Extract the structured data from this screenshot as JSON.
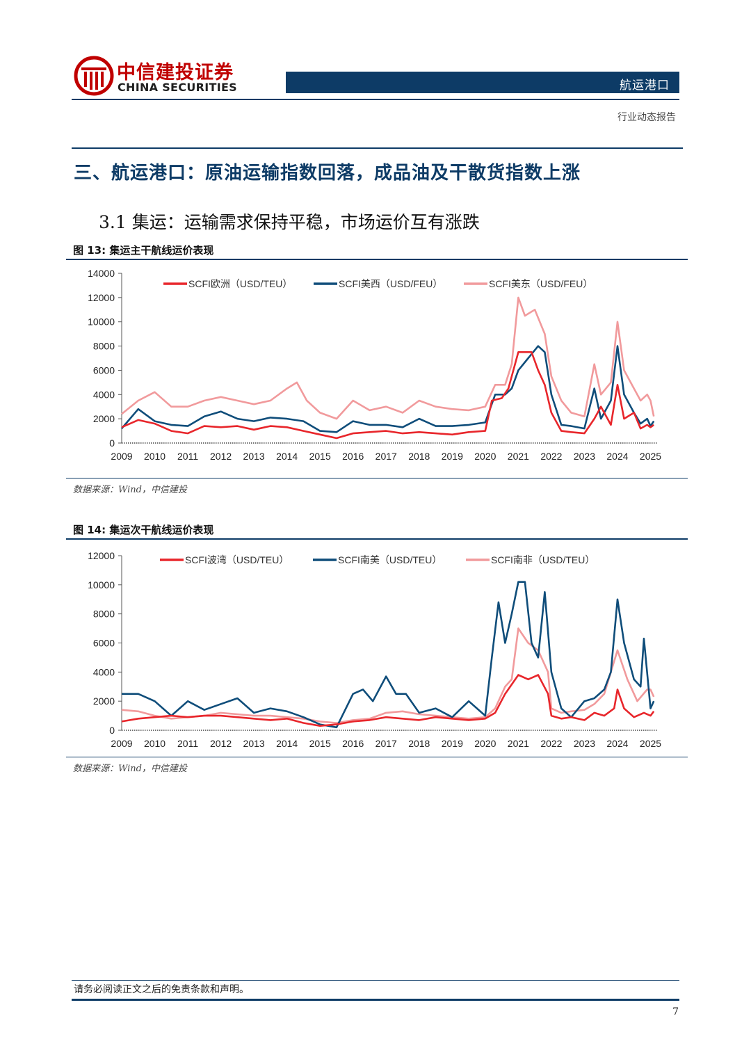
{
  "header": {
    "brand_cn": "中信建投证券",
    "brand_en": "CHINA SECURITIES",
    "section_tab": "航运港口",
    "report_type": "行业动态报告"
  },
  "section": {
    "heading": "三、航运港口：原油运输指数回落，成品油及干散货指数上涨",
    "subheading": "3.1 集运：运输需求保持平稳，市场运价互有涨跌"
  },
  "colors": {
    "brand_red": "#c00000",
    "navy": "#0d3b66",
    "series_red": "#e8262b",
    "series_navy": "#0f4d7a",
    "series_pink": "#f19a9c"
  },
  "figures": [
    {
      "caption": "图 13: 集运主干航线运价表现",
      "source": "数据来源：Wind，中信建投"
    },
    {
      "caption": "图 14: 集运次干航线运价表现",
      "source": "数据来源：Wind，中信建投"
    }
  ],
  "chart_data": [
    {
      "type": "line",
      "title": "图 13: 集运主干航线运价表现",
      "xlim": [
        2009,
        2025.2
      ],
      "ylim": [
        0,
        14000
      ],
      "x_ticks": [
        "2009",
        "2010",
        "2011",
        "2012",
        "2013",
        "2014",
        "2015",
        "2016",
        "2017",
        "2018",
        "2019",
        "2020",
        "2021",
        "2022",
        "2023",
        "2024",
        "2025"
      ],
      "y_ticks": [
        "0",
        "2000",
        "4000",
        "6000",
        "8000",
        "10000",
        "12000",
        "14000"
      ],
      "legend": "top",
      "series": [
        {
          "name": "SCFI欧洲（USD/TEU）",
          "color": "#e8262b",
          "x": [
            2009,
            2009.5,
            2010,
            2010.5,
            2011,
            2011.5,
            2012,
            2012.5,
            2013,
            2013.5,
            2014,
            2014.5,
            2015,
            2015.5,
            2016,
            2016.5,
            2017,
            2017.5,
            2018,
            2018.5,
            2019,
            2019.5,
            2020,
            2020.2,
            2020.5,
            2020.7,
            2021,
            2021.2,
            2021.4,
            2021.6,
            2021.8,
            2022,
            2022.3,
            2022.6,
            2023,
            2023.3,
            2023.5,
            2023.8,
            2024,
            2024.2,
            2024.5,
            2024.7,
            2024.9,
            2025,
            2025.1
          ],
          "y": [
            1300,
            1900,
            1600,
            1000,
            800,
            1400,
            1300,
            1400,
            1100,
            1400,
            1300,
            1000,
            700,
            400,
            800,
            900,
            1000,
            800,
            900,
            800,
            700,
            900,
            1000,
            3500,
            3700,
            4500,
            7500,
            7500,
            7500,
            6000,
            4800,
            2500,
            1000,
            900,
            800,
            2000,
            3000,
            1500,
            4800,
            2000,
            2500,
            1200,
            1500,
            1300,
            1500
          ]
        },
        {
          "name": "SCFI美西（USD/FEU）",
          "color": "#0f4d7a",
          "x": [
            2009,
            2009.5,
            2010,
            2010.5,
            2011,
            2011.5,
            2012,
            2012.5,
            2013,
            2013.5,
            2014,
            2014.5,
            2015,
            2015.5,
            2016,
            2016.5,
            2017,
            2017.5,
            2018,
            2018.5,
            2019,
            2019.5,
            2020,
            2020.3,
            2020.6,
            2020.8,
            2021,
            2021.3,
            2021.6,
            2021.8,
            2022,
            2022.3,
            2022.6,
            2023,
            2023.3,
            2023.5,
            2023.8,
            2024,
            2024.2,
            2024.5,
            2024.7,
            2024.9,
            2025,
            2025.1
          ],
          "y": [
            1200,
            2800,
            1800,
            1500,
            1400,
            2200,
            2600,
            2000,
            1800,
            2100,
            2000,
            1800,
            1000,
            900,
            1800,
            1500,
            1500,
            1300,
            2000,
            1400,
            1400,
            1500,
            1700,
            4000,
            4000,
            4500,
            6000,
            7000,
            8000,
            7500,
            4000,
            1500,
            1400,
            1200,
            4500,
            2000,
            3500,
            8000,
            4000,
            2500,
            1600,
            2000,
            1400,
            1800
          ]
        },
        {
          "name": "SCFI美东（USD/FEU）",
          "color": "#f19a9c",
          "x": [
            2009,
            2009.5,
            2010,
            2010.5,
            2011,
            2011.5,
            2012,
            2012.5,
            2013,
            2013.5,
            2014,
            2014.3,
            2014.6,
            2015,
            2015.5,
            2016,
            2016.5,
            2017,
            2017.5,
            2018,
            2018.5,
            2019,
            2019.5,
            2020,
            2020.3,
            2020.6,
            2020.8,
            2021,
            2021.2,
            2021.5,
            2021.8,
            2022,
            2022.3,
            2022.6,
            2023,
            2023.3,
            2023.5,
            2023.8,
            2024,
            2024.2,
            2024.5,
            2024.7,
            2024.9,
            2025,
            2025.1
          ],
          "y": [
            2400,
            3500,
            4200,
            3000,
            3000,
            3500,
            3800,
            3500,
            3200,
            3500,
            4500,
            5000,
            3500,
            2500,
            2000,
            3500,
            2700,
            3000,
            2500,
            3500,
            3000,
            2800,
            2700,
            3000,
            4800,
            4800,
            6500,
            12000,
            10500,
            11000,
            9000,
            5500,
            3500,
            2500,
            2200,
            6500,
            4000,
            5000,
            10000,
            6000,
            4500,
            3500,
            4000,
            3500,
            2200
          ]
        }
      ]
    },
    {
      "type": "line",
      "title": "图 14: 集运次干航线运价表现",
      "xlim": [
        2009,
        2025.2
      ],
      "ylim": [
        0,
        12000
      ],
      "x_ticks": [
        "2009",
        "2010",
        "2011",
        "2012",
        "2013",
        "2014",
        "2015",
        "2016",
        "2017",
        "2018",
        "2019",
        "2020",
        "2021",
        "2022",
        "2023",
        "2024",
        "2025"
      ],
      "y_ticks": [
        "0",
        "2000",
        "4000",
        "6000",
        "8000",
        "10000",
        "12000"
      ],
      "legend": "top",
      "series": [
        {
          "name": "SCFI波湾（USD/TEU）",
          "color": "#e8262b",
          "x": [
            2009,
            2009.5,
            2010,
            2010.5,
            2011,
            2011.5,
            2012,
            2012.5,
            2013,
            2013.5,
            2014,
            2014.5,
            2015,
            2015.5,
            2016,
            2016.5,
            2017,
            2017.5,
            2018,
            2018.5,
            2019,
            2019.5,
            2020,
            2020.3,
            2020.6,
            2021,
            2021.3,
            2021.6,
            2021.9,
            2022,
            2022.3,
            2022.6,
            2023,
            2023.3,
            2023.6,
            2023.9,
            2024,
            2024.2,
            2024.5,
            2024.8,
            2025,
            2025.1
          ],
          "y": [
            600,
            800,
            900,
            1000,
            900,
            1000,
            1000,
            900,
            800,
            700,
            800,
            500,
            300,
            400,
            600,
            700,
            900,
            800,
            700,
            900,
            800,
            700,
            800,
            1200,
            2500,
            3800,
            3500,
            3800,
            2500,
            1000,
            800,
            900,
            700,
            1200,
            1000,
            1500,
            2800,
            1500,
            900,
            1200,
            1000,
            1300
          ]
        },
        {
          "name": "SCFI南美（USD/TEU）",
          "color": "#0f4d7a",
          "x": [
            2009,
            2009.5,
            2010,
            2010.5,
            2011,
            2011.5,
            2012,
            2012.5,
            2013,
            2013.5,
            2014,
            2014.5,
            2015,
            2015.5,
            2016,
            2016.3,
            2016.6,
            2017,
            2017.3,
            2017.6,
            2018,
            2018.5,
            2019,
            2019.5,
            2020,
            2020.2,
            2020.4,
            2020.6,
            2020.8,
            2021,
            2021.2,
            2021.4,
            2021.6,
            2021.8,
            2022,
            2022.3,
            2022.6,
            2023,
            2023.3,
            2023.6,
            2023.8,
            2024,
            2024.2,
            2024.5,
            2024.7,
            2024.8,
            2025,
            2025.1
          ],
          "y": [
            2500,
            2500,
            2000,
            1000,
            2000,
            1400,
            1800,
            2200,
            1200,
            1500,
            1300,
            900,
            400,
            200,
            2500,
            2800,
            2000,
            3700,
            2500,
            2500,
            1200,
            1500,
            900,
            2000,
            1000,
            5000,
            8800,
            6000,
            8000,
            10200,
            10200,
            6000,
            5000,
            9500,
            4000,
            1500,
            900,
            2000,
            2200,
            2800,
            4000,
            9000,
            6000,
            3500,
            3000,
            6300,
            1500,
            2000
          ]
        },
        {
          "name": "SCFI南非（USD/TEU）",
          "color": "#f19a9c",
          "x": [
            2009,
            2009.5,
            2010,
            2010.5,
            2011,
            2011.5,
            2012,
            2012.5,
            2013,
            2013.5,
            2014,
            2014.5,
            2015,
            2015.5,
            2016,
            2016.5,
            2017,
            2017.5,
            2018,
            2018.5,
            2019,
            2019.5,
            2020,
            2020.3,
            2020.6,
            2020.8,
            2021,
            2021.3,
            2021.6,
            2021.9,
            2022,
            2022.3,
            2022.6,
            2023,
            2023.3,
            2023.6,
            2024,
            2024.3,
            2024.6,
            2024.9,
            2025,
            2025.1
          ],
          "y": [
            1400,
            1300,
            1000,
            800,
            900,
            1000,
            1200,
            1100,
            1000,
            1000,
            900,
            800,
            600,
            500,
            700,
            800,
            1200,
            1300,
            1100,
            1000,
            900,
            800,
            900,
            1500,
            3000,
            3500,
            7000,
            6000,
            5500,
            4000,
            1500,
            1200,
            1300,
            1400,
            1800,
            2500,
            5500,
            3500,
            2000,
            2800,
            2800,
            2300
          ]
        }
      ]
    }
  ],
  "footer": {
    "disclaimer": "请务必阅读正文之后的免责条款和声明。",
    "page_number": "7"
  }
}
